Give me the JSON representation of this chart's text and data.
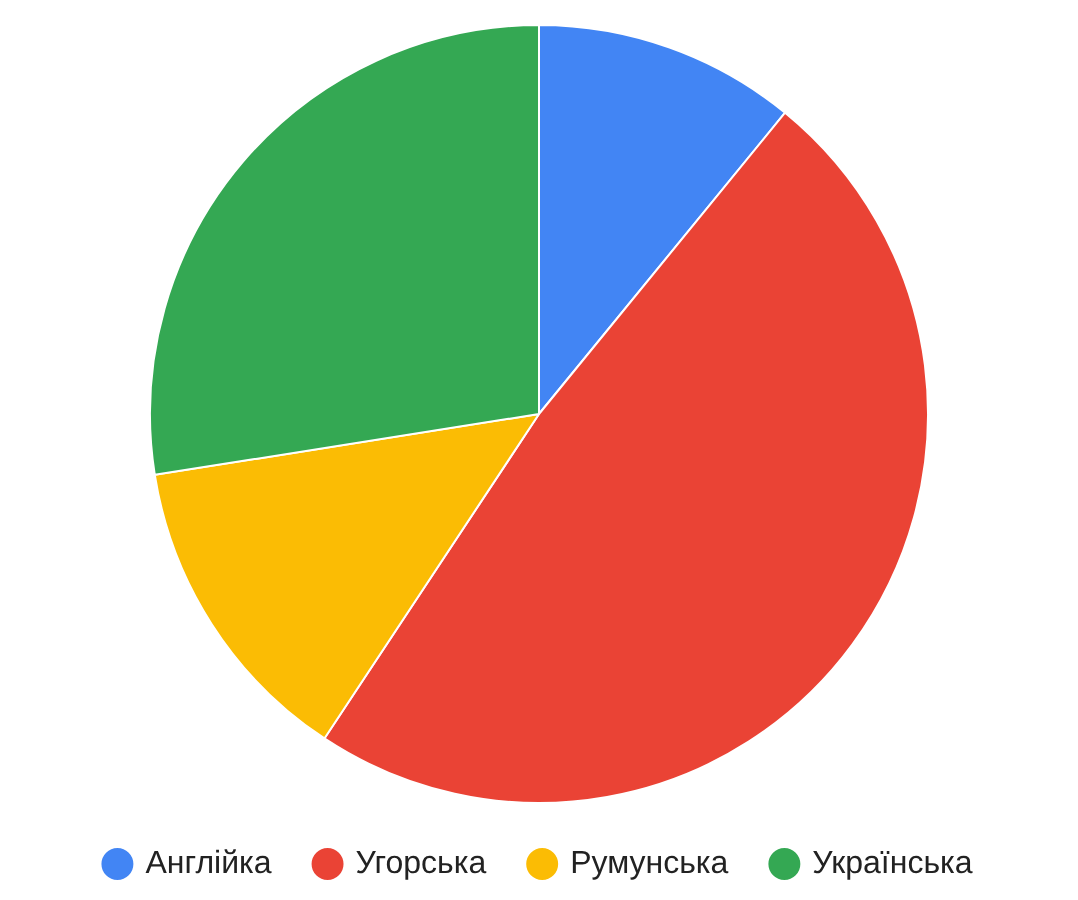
{
  "chart_data": {
    "type": "pie",
    "categories": [
      "Англійка",
      "Угорська",
      "Румунська",
      "Українська"
    ],
    "values": [
      10.9,
      48.4,
      13.2,
      27.5
    ],
    "colors": [
      "#4285f4",
      "#ea4335",
      "#fbbc04",
      "#34a853"
    ],
    "legend": "bottom"
  }
}
